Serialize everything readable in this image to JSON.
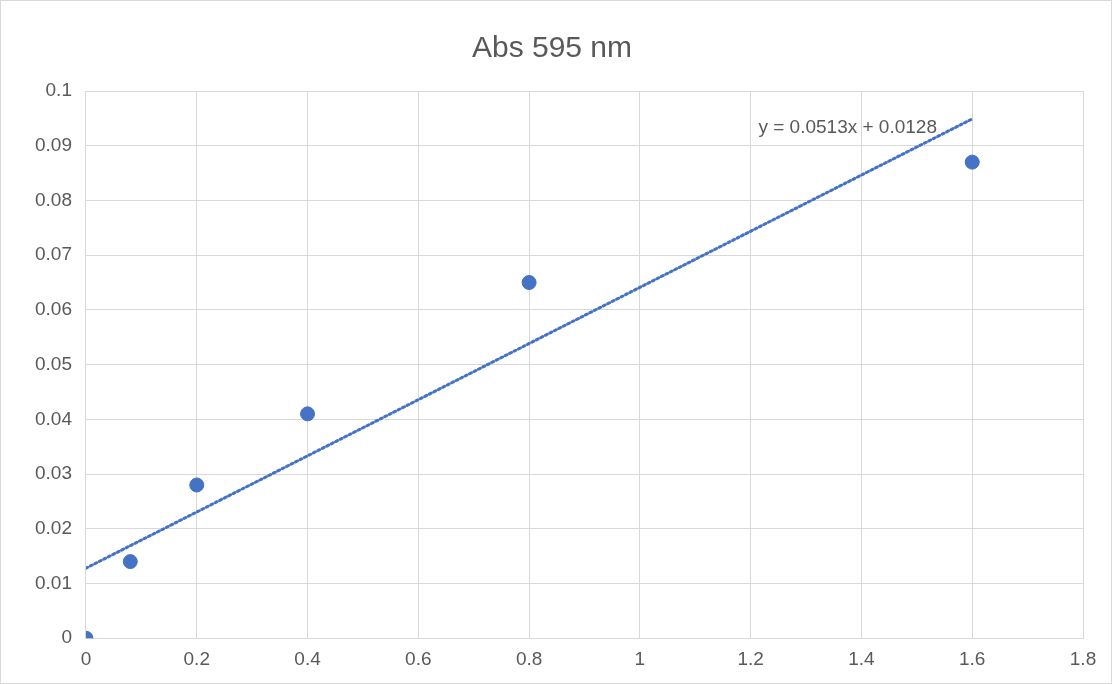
{
  "chart_data": {
    "type": "scatter",
    "title": "Abs 595 nm",
    "series": [
      {
        "type": "scatter",
        "color": "#4472c4",
        "x": [
          0,
          0.08,
          0.2,
          0.4,
          0.8,
          1.6
        ],
        "values": [
          0,
          0.014,
          0.028,
          0.041,
          0.065,
          0.087
        ],
        "marker": "circle"
      },
      {
        "type": "line",
        "color": "#4472c4",
        "x": [
          0,
          1.6
        ],
        "values": [
          0.0128,
          0.0949
        ],
        "marker": "none",
        "line_style": "dotted"
      }
    ],
    "xlim": [
      0,
      1.8
    ],
    "xticks": [
      0,
      0.2,
      0.4,
      0.6,
      0.8,
      1,
      1.2,
      1.4,
      1.6,
      1.8
    ],
    "ylim": [
      0,
      0.1
    ],
    "yticks": [
      0,
      0.01,
      0.02,
      0.03,
      0.04,
      0.05,
      0.06,
      0.07,
      0.08,
      0.09,
      0.1
    ],
    "grid": true,
    "annotations": [
      "y = 0.0513x + 0.0128"
    ]
  }
}
